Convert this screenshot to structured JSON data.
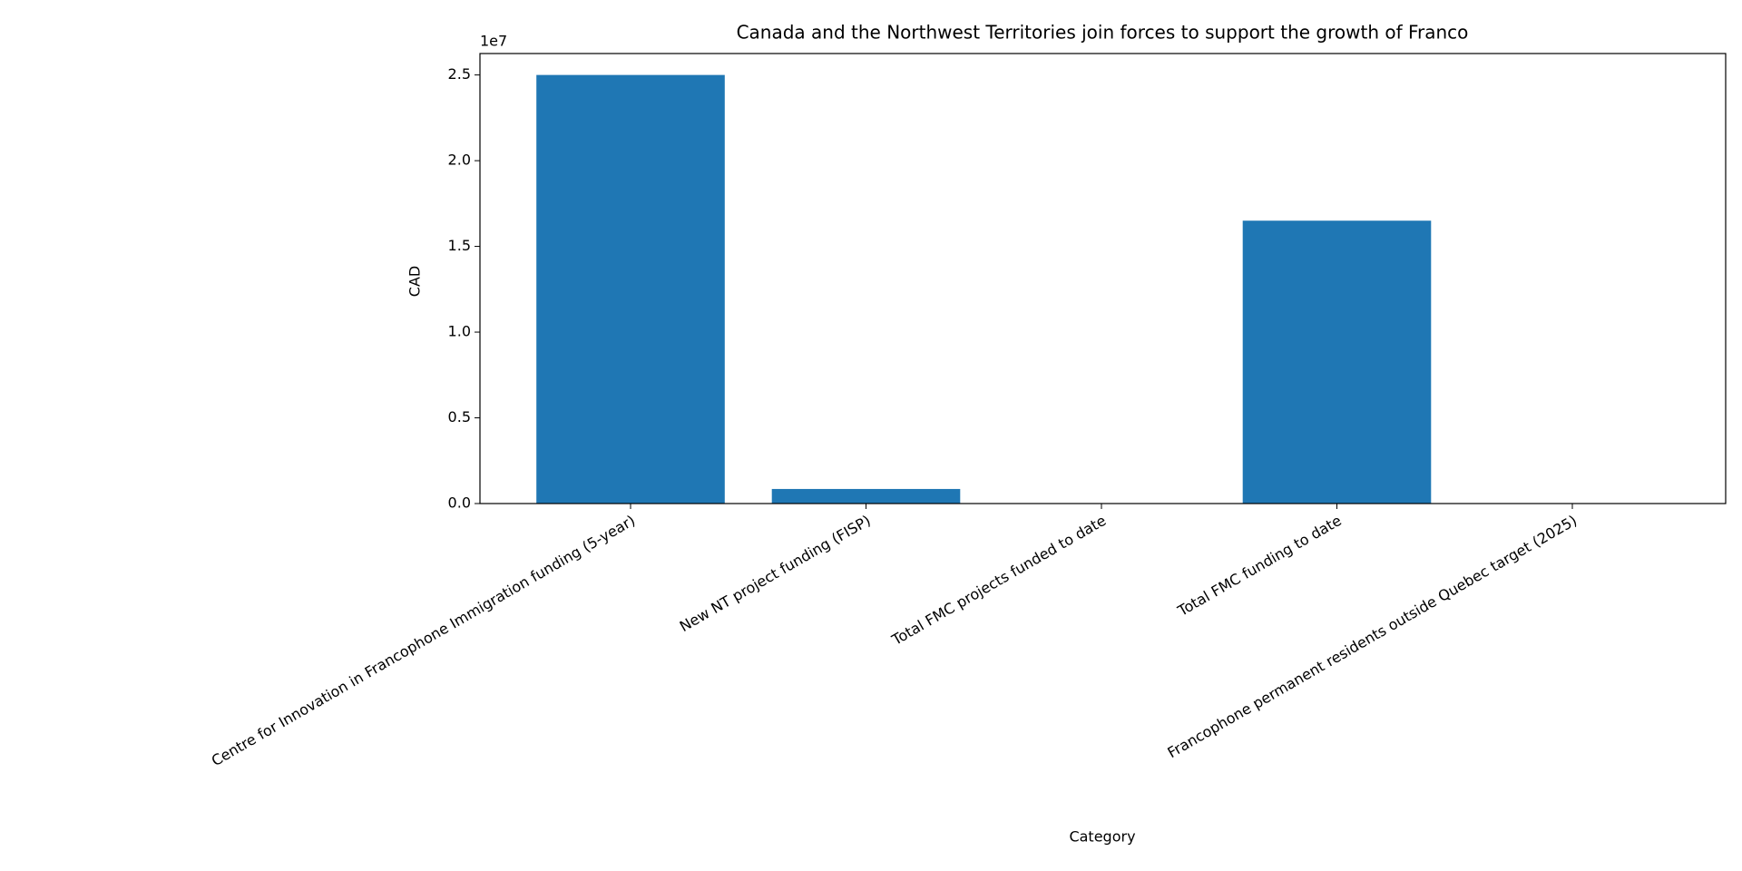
{
  "chart_data": {
    "type": "bar",
    "title": "Canada and the Northwest Territories join forces to support the growth of Franco",
    "x_label": "Category",
    "y_label": "CAD",
    "y_offset_label": "1e7",
    "categories": [
      "Centre for Innovation in Francophone Immigration funding (5-year)",
      "New NT project funding (FISP)",
      "Total FMC projects funded to date",
      "Total FMC funding to date",
      "Francophone permanent residents outside Quebec target (2025)"
    ],
    "values": [
      25000000,
      850000,
      24,
      16500000,
      6
    ],
    "color": "#1f77b4",
    "ylim": [
      0,
      26250000
    ],
    "yticks": [
      {
        "value": 0,
        "label": "0.0"
      },
      {
        "value": 5000000,
        "label": "0.5"
      },
      {
        "value": 10000000,
        "label": "1.0"
      },
      {
        "value": 15000000,
        "label": "1.5"
      },
      {
        "value": 20000000,
        "label": "2.0"
      },
      {
        "value": 25000000,
        "label": "2.5"
      }
    ],
    "grid": false
  }
}
